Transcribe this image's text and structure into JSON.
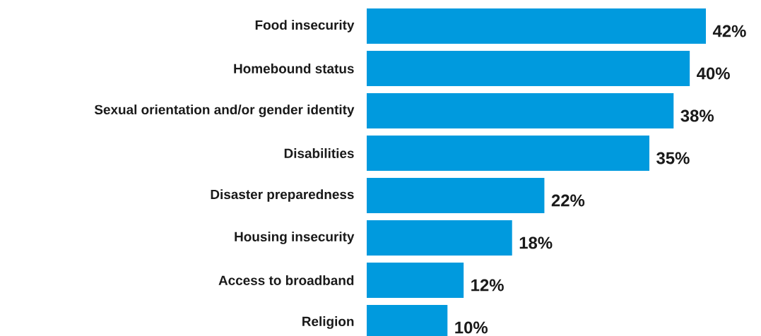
{
  "chart_data": {
    "type": "bar",
    "orientation": "horizontal",
    "categories": [
      "Food insecurity",
      "Homebound status",
      "Sexual orientation and/or gender identity",
      "Disabilities",
      "Disaster preparedness",
      "Housing insecurity",
      "Access to broadband",
      "Religion"
    ],
    "values": [
      42,
      40,
      38,
      35,
      22,
      18,
      12,
      10
    ],
    "value_labels": [
      "42%",
      "40%",
      "38%",
      "35%",
      "22%",
      "18%",
      "12%",
      "10%"
    ],
    "color": "#009ade"
  }
}
